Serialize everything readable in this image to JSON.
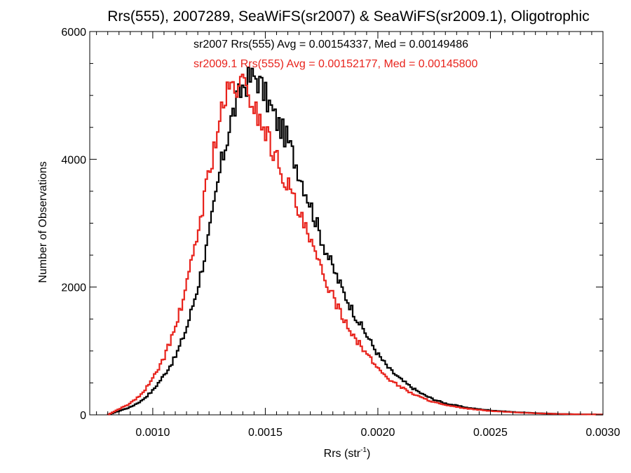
{
  "chart_data": {
    "type": "line",
    "title": "Rrs(555), 2007289, SeaWiFS(sr2007) & SeaWiFS(sr2009.1), Oligotrophic",
    "xlabel_main": "Rrs (str",
    "xlabel_sup": "-1",
    "xlabel_close": ")",
    "ylabel": "Number of Observations",
    "xlim": [
      0.00072,
      0.003
    ],
    "ylim": [
      0,
      6000
    ],
    "x_ticks": [
      0.001,
      0.0015,
      0.002,
      0.0025,
      0.003
    ],
    "x_tick_labels": [
      "0.0010",
      "0.0015",
      "0.0020",
      "0.0025",
      "0.0030"
    ],
    "y_ticks": [
      0,
      2000,
      4000,
      6000
    ],
    "y_tick_labels": [
      "0",
      "2000",
      "4000",
      "6000"
    ],
    "grid": false,
    "legend_position": "top-center",
    "series": [
      {
        "label": "sr2007 Rrs(555) Avg = 0.00154337, Med = 0.00149486",
        "color": "#000000",
        "x": [
          0.0008,
          0.00085,
          0.0009,
          0.00095,
          0.001,
          0.00105,
          0.0011,
          0.00115,
          0.0012,
          0.00125,
          0.0013,
          0.00135,
          0.0014,
          0.00143,
          0.00146,
          0.0015,
          0.00155,
          0.0016,
          0.00165,
          0.0017,
          0.00175,
          0.0018,
          0.00185,
          0.0019,
          0.00195,
          0.002,
          0.00205,
          0.0021,
          0.00215,
          0.0022,
          0.00225,
          0.0023,
          0.0024,
          0.0025,
          0.0026,
          0.0027,
          0.0028,
          0.0029,
          0.003
        ],
        "y": [
          0,
          60,
          120,
          220,
          380,
          620,
          900,
          1350,
          2000,
          2800,
          3850,
          4650,
          5150,
          5250,
          5300,
          5000,
          4600,
          4300,
          3800,
          3300,
          2750,
          2300,
          1900,
          1550,
          1250,
          950,
          720,
          560,
          430,
          320,
          240,
          180,
          110,
          70,
          45,
          28,
          15,
          8,
          5
        ]
      },
      {
        "label": "sr2009.1 Rrs(555) Avg = 0.00152177, Med = 0.00145800",
        "color": "#e8231c",
        "x": [
          0.0008,
          0.00085,
          0.0009,
          0.00095,
          0.001,
          0.00105,
          0.0011,
          0.00115,
          0.0012,
          0.00125,
          0.0013,
          0.00133,
          0.00136,
          0.0014,
          0.00143,
          0.00146,
          0.0015,
          0.00155,
          0.0016,
          0.00165,
          0.0017,
          0.00175,
          0.0018,
          0.00185,
          0.0019,
          0.00195,
          0.002,
          0.00205,
          0.0021,
          0.00215,
          0.0022,
          0.00225,
          0.0023,
          0.0024,
          0.0025,
          0.0026,
          0.0027,
          0.0028,
          0.0029,
          0.003
        ],
        "y": [
          0,
          90,
          180,
          320,
          560,
          900,
          1350,
          2000,
          2850,
          3800,
          4650,
          5000,
          5150,
          5150,
          5000,
          4750,
          4450,
          4000,
          3600,
          3150,
          2700,
          2250,
          1850,
          1500,
          1200,
          950,
          730,
          560,
          440,
          340,
          260,
          200,
          150,
          95,
          60,
          40,
          25,
          14,
          8,
          5
        ]
      }
    ]
  }
}
